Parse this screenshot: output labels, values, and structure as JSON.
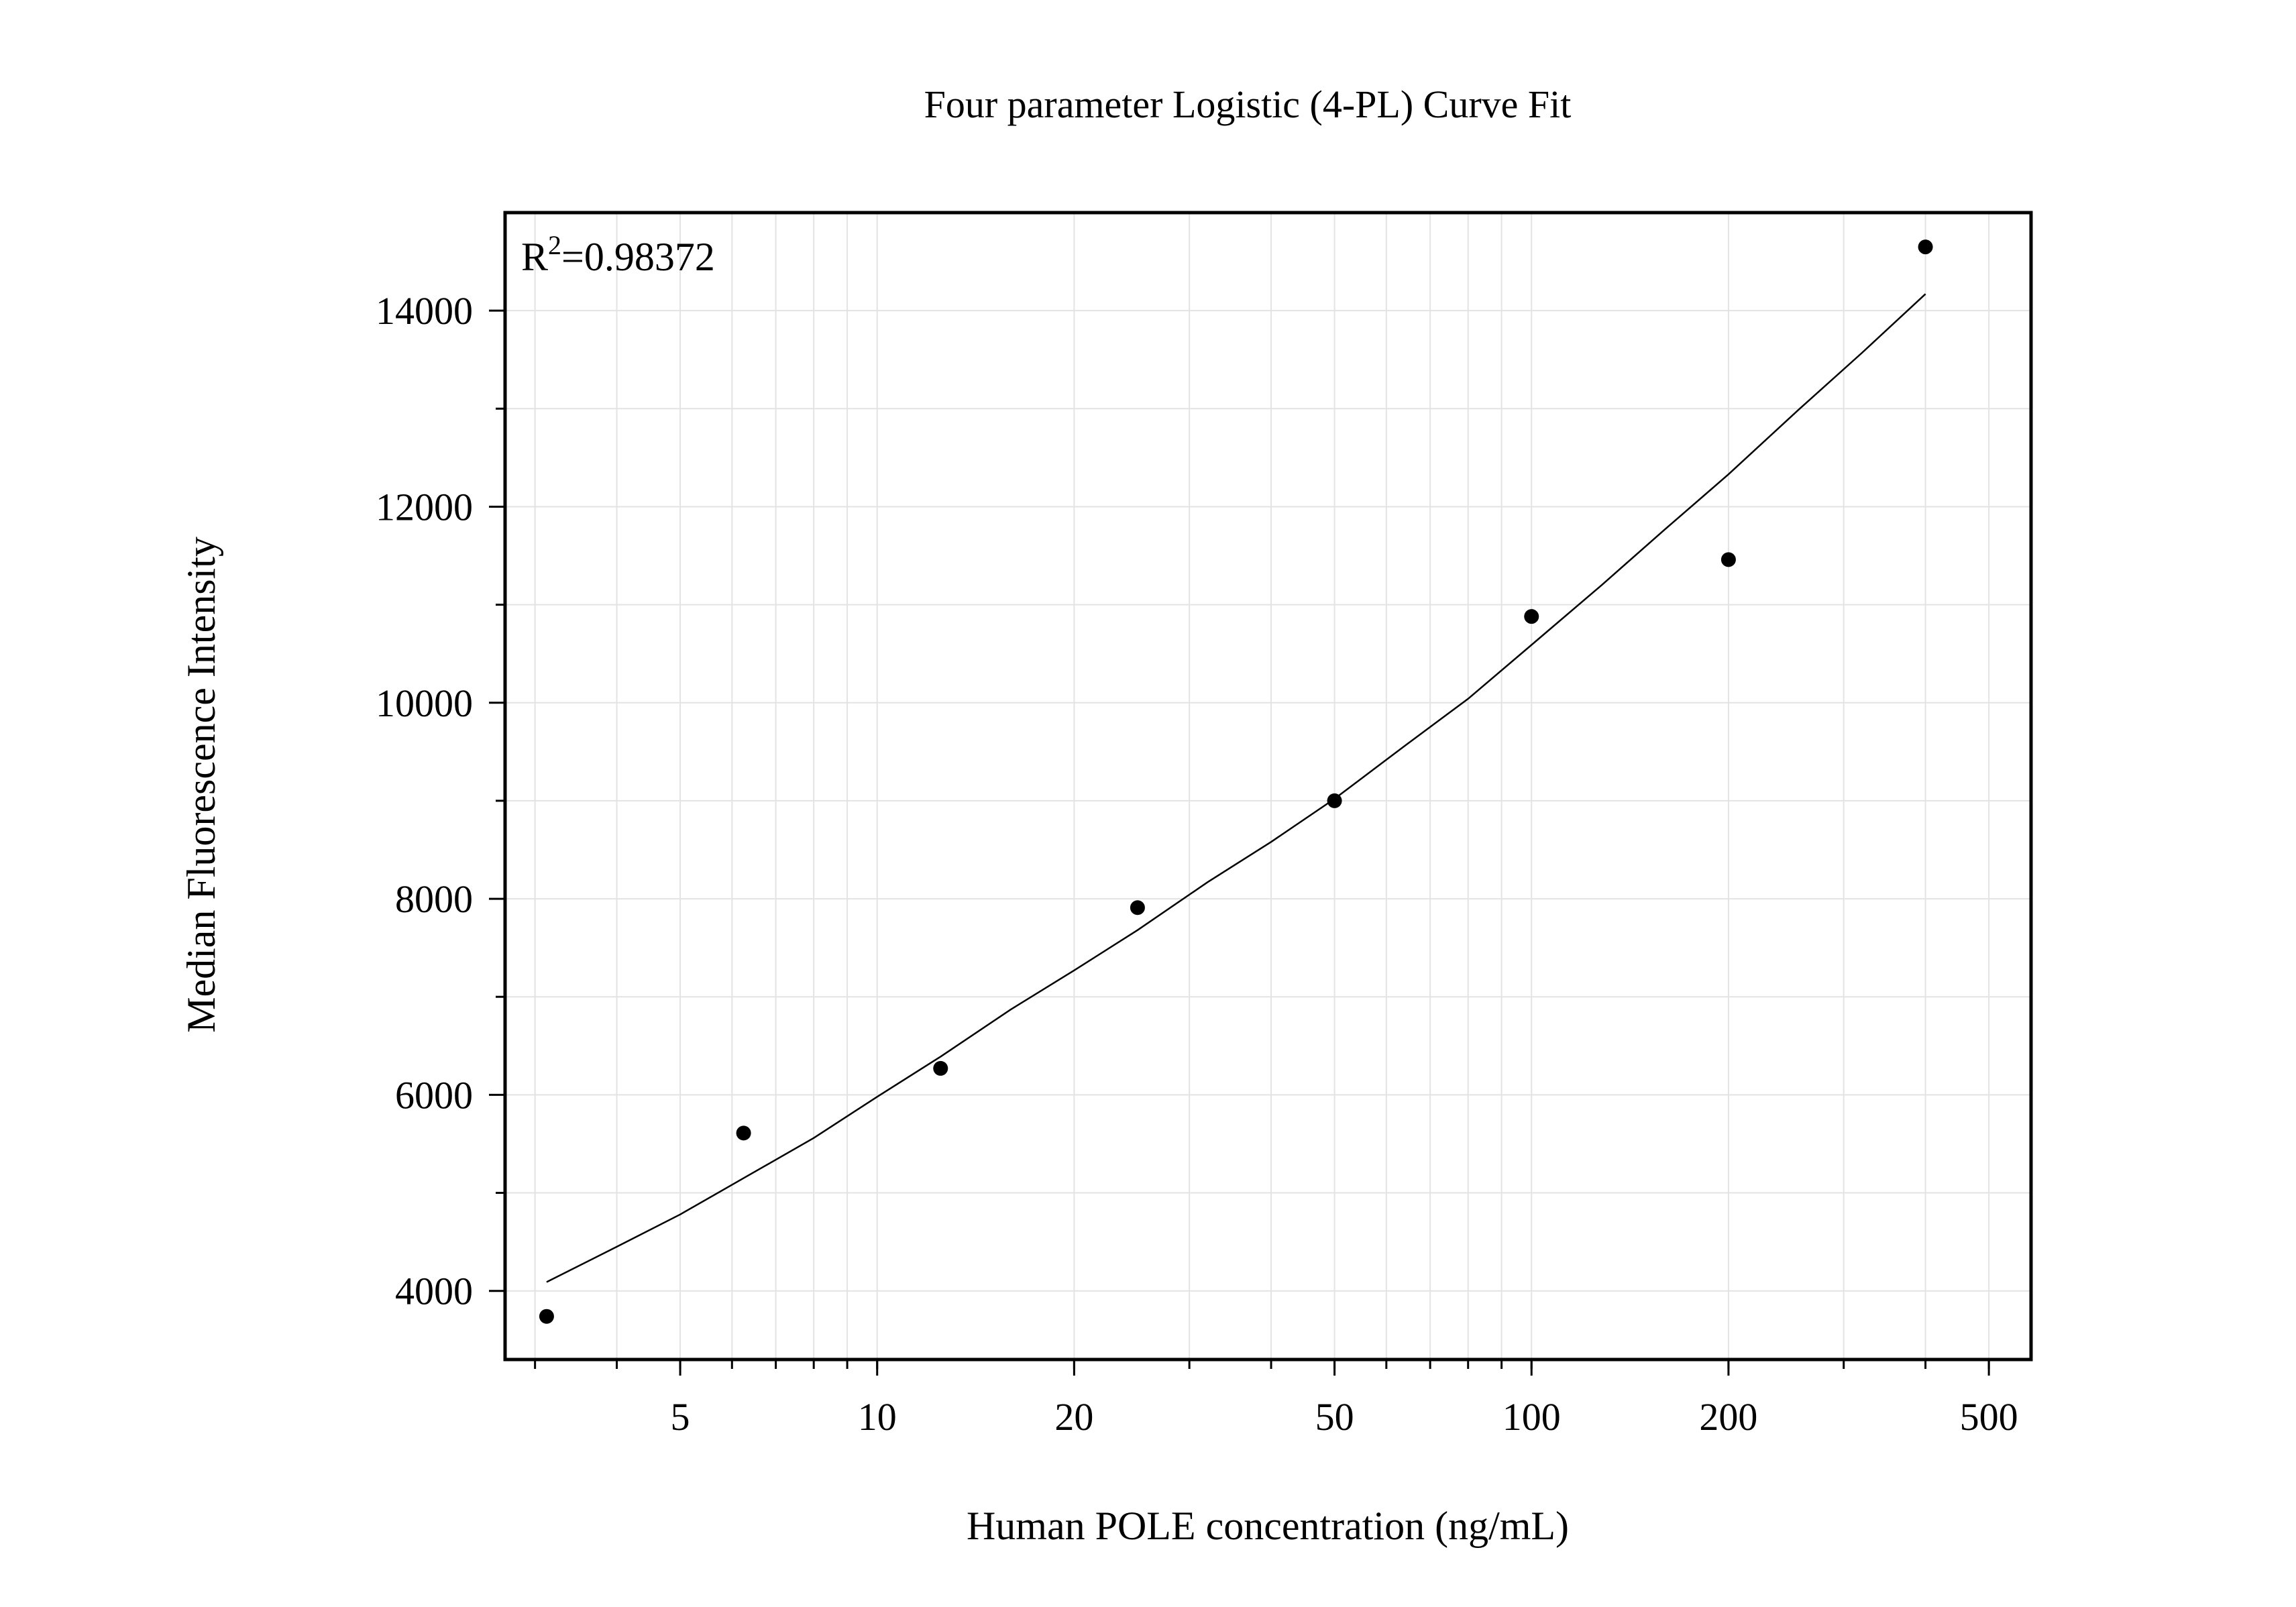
{
  "chart_data": {
    "type": "scatter",
    "title": "Four parameter Logistic (4-PL) Curve Fit",
    "xlabel": "Human POLE concentration (ng/mL)",
    "ylabel": "Median Fluorescence Intensity",
    "x_scale": "log",
    "xlim": [
      2.7,
      580
    ],
    "ylim": [
      3300,
      15000
    ],
    "x_ticks": [
      5,
      10,
      20,
      50,
      100,
      200,
      500
    ],
    "x_tick_labels": [
      "5",
      "10",
      "20",
      "50",
      "100",
      "200",
      "500"
    ],
    "y_ticks": [
      4000,
      6000,
      8000,
      10000,
      12000,
      14000
    ],
    "y_tick_labels": [
      "4000",
      "6000",
      "8000",
      "10000",
      "12000",
      "14000"
    ],
    "grid": true,
    "annotation": {
      "r2_prefix": "R",
      "r2_sup": "2",
      "r2_value": "=0.98372",
      "position": "top-left"
    },
    "points": {
      "x": [
        3.125,
        6.25,
        12.5,
        25,
        50,
        100,
        200,
        400
      ],
      "y": [
        3740,
        5610,
        6270,
        7910,
        9000,
        10880,
        11460,
        14650
      ]
    },
    "fit_curve": {
      "x": [
        3.125,
        4,
        5,
        6.25,
        8,
        10,
        12.5,
        16,
        20,
        25,
        32,
        40,
        50,
        64,
        80,
        100,
        128,
        160,
        200,
        256,
        320,
        400
      ],
      "y": [
        4090,
        4450,
        4780,
        5150,
        5560,
        5980,
        6390,
        6870,
        7270,
        7680,
        8170,
        8580,
        9020,
        9560,
        10040,
        10590,
        11200,
        11770,
        12330,
        12990,
        13570,
        14170
      ]
    },
    "colors": {
      "points": "#000000",
      "curve": "#000000",
      "grid": "#e3e3e3",
      "frame": "#000000"
    }
  }
}
